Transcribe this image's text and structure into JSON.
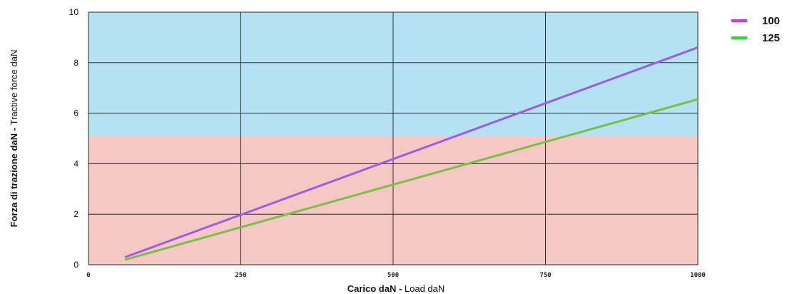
{
  "chart_data": {
    "type": "line",
    "xlabel_bold": "Carico daN - ",
    "xlabel_light": "Load daN",
    "ylabel_bold": "Forza di trazione daN - ",
    "ylabel_light": "Tractive force daN",
    "xlim": [
      0,
      1000
    ],
    "ylim": [
      0,
      10
    ],
    "x_ticks": [
      0,
      250,
      500,
      750,
      1000
    ],
    "y_ticks": [
      0,
      2,
      4,
      6,
      8,
      10
    ],
    "grid": true,
    "legend_position": "top-right",
    "zones": [
      {
        "y_from": 0,
        "y_to": 5.1,
        "y_to_end": 5.2,
        "color": "#f5c8c6"
      },
      {
        "y_from": 5.1,
        "y_to": 10,
        "color": "#b4e1f4"
      }
    ],
    "series": [
      {
        "name": "100",
        "color": "#9b5de5",
        "legend_color": "#e030e0",
        "x": [
          60,
          1000
        ],
        "y": [
          0.3,
          8.6
        ]
      },
      {
        "name": "125",
        "color": "#7bc043",
        "legend_color": "#22dd22",
        "x": [
          60,
          1000
        ],
        "y": [
          0.2,
          6.55
        ]
      }
    ]
  }
}
